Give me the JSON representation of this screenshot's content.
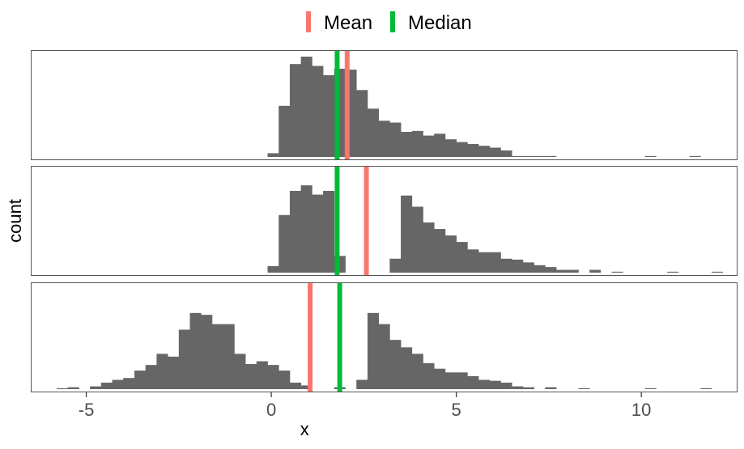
{
  "chart_data": {
    "type": "bar",
    "chart_kind": "faceted histogram",
    "xlabel": "x",
    "ylabel": "count",
    "xlim": [
      -6.5,
      12.6
    ],
    "x_ticks": [
      -5,
      0,
      5,
      10
    ],
    "x_tick_labels": [
      "-5",
      "0",
      "5",
      "10"
    ],
    "y_tick_labels_shown": false,
    "grid": false,
    "bin_width": 0.3,
    "legend": {
      "position": "top",
      "entries": [
        {
          "name": "Mean",
          "color": "#F8766D"
        },
        {
          "name": "Median",
          "color": "#00BA38"
        }
      ]
    },
    "bar_color": "#666666",
    "panels": [
      {
        "bin_start": -0.1,
        "counts": [
          4,
          55,
          100,
          108,
          98,
          88,
          95,
          94,
          72,
          52,
          39,
          37,
          27,
          28,
          23,
          25,
          19,
          16,
          14,
          12,
          10,
          7,
          1,
          1,
          1,
          1,
          0,
          0,
          0,
          0,
          0,
          0,
          0,
          0,
          1,
          0,
          0,
          0,
          1
        ],
        "mean": 2.05,
        "median": 1.78
      },
      {
        "bin_start": -0.1,
        "counts": [
          7,
          62,
          88,
          94,
          84,
          88,
          18,
          0,
          0,
          0,
          0,
          15,
          83,
          71,
          54,
          47,
          40,
          33,
          25,
          22,
          22,
          15,
          14,
          11,
          8,
          6,
          3,
          3,
          0,
          3,
          0,
          1,
          0,
          0,
          0,
          0,
          1,
          0,
          0,
          0,
          1
        ],
        "mean": 2.57,
        "median": 1.78
      },
      {
        "bin_start": -5.8,
        "counts": [
          1,
          2,
          0,
          3,
          7,
          10,
          12,
          20,
          26,
          38,
          35,
          64,
          82,
          80,
          70,
          70,
          38,
          27,
          30,
          26,
          20,
          7,
          4,
          0,
          0,
          2,
          0,
          10,
          82,
          70,
          53,
          45,
          38,
          28,
          22,
          18,
          18,
          14,
          10,
          9,
          7,
          3,
          2,
          0,
          2,
          0,
          0,
          1,
          0,
          0,
          0,
          0,
          0,
          1,
          0,
          0,
          0,
          0,
          1
        ],
        "mean": 1.05,
        "median": 1.85
      }
    ]
  }
}
